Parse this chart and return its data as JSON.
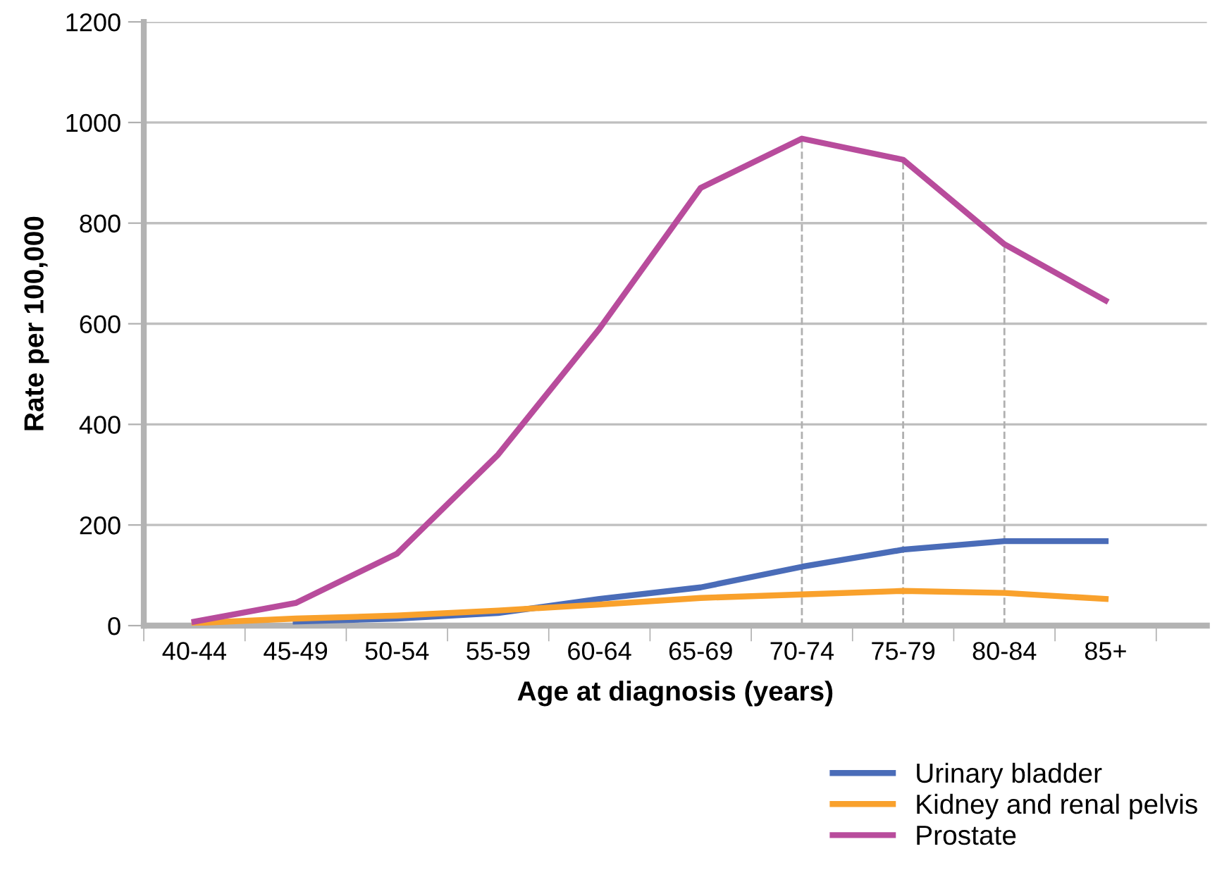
{
  "chart_data": {
    "type": "line",
    "xlabel": "Age at diagnosis (years)",
    "ylabel": "Rate per 100,000",
    "categories": [
      "40-44",
      "45-49",
      "50-54",
      "55-59",
      "60-64",
      "65-69",
      "70-74",
      "75-79",
      "80-84",
      "85+"
    ],
    "series": [
      {
        "name": "Urinary bladder",
        "color": "#4a6cb8",
        "values": [
          null,
          8,
          14,
          25,
          53,
          76,
          117,
          151,
          168,
          168
        ]
      },
      {
        "name": "Kidney and renal pelvis",
        "color": "#f9a12c",
        "values": [
          5,
          14,
          20,
          30,
          42,
          55,
          62,
          69,
          65,
          53
        ]
      },
      {
        "name": "Prostate",
        "color": "#b84c9c",
        "values": [
          8,
          45,
          143,
          340,
          590,
          870,
          968,
          926,
          758,
          646
        ]
      }
    ],
    "ylim": [
      0,
      1200
    ],
    "yticks": [
      0,
      200,
      400,
      600,
      800,
      1000,
      1200
    ],
    "grid": "y",
    "legend": "bottom right",
    "marker": "none",
    "line_style": "solid",
    "ref_lines": [
      {
        "axis": "x",
        "value": "70-74",
        "color": "#b0b0b0",
        "line_style": "dashed"
      },
      {
        "axis": "x",
        "value": "75-79",
        "color": "#b0b0b0",
        "line_style": "dashed"
      },
      {
        "axis": "x",
        "value": "80-84",
        "color": "#b0b0b0",
        "line_style": "dashed"
      }
    ]
  }
}
